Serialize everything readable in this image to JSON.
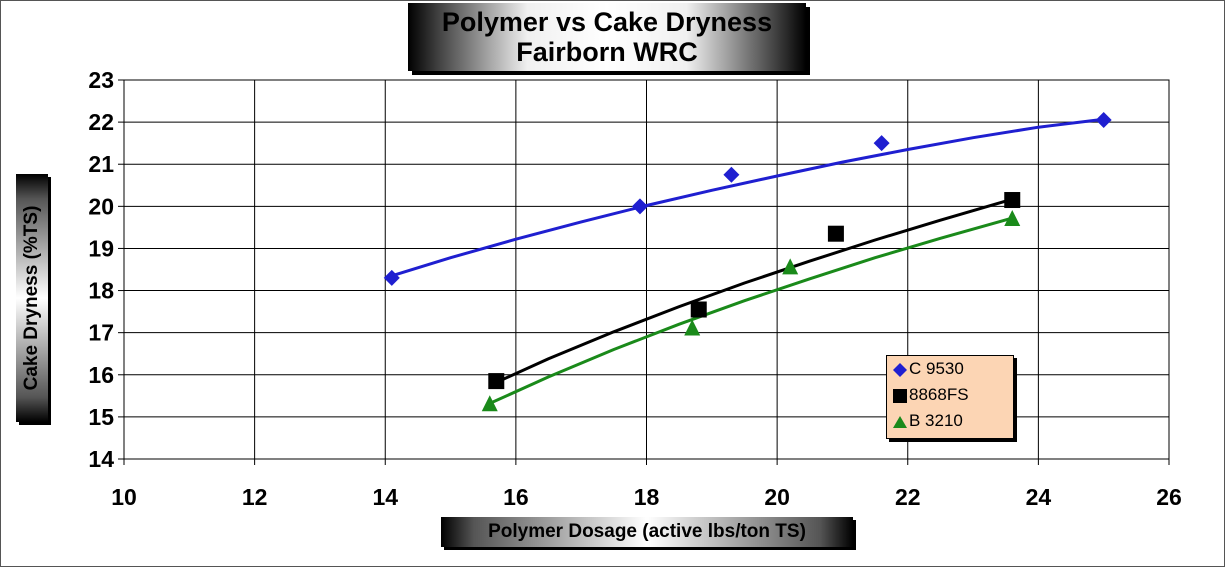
{
  "chart_data": {
    "type": "scatter",
    "title": "Polymer vs Cake Dryness",
    "subtitle": "Fairborn WRC",
    "xlabel": "Polymer Dosage (active lbs/ton TS)",
    "ylabel": "Cake Dryness (%TS)",
    "xlim": [
      10,
      26
    ],
    "ylim": [
      14,
      23
    ],
    "xticks": [
      "10",
      "12",
      "14",
      "16",
      "18",
      "20",
      "22",
      "24",
      "26"
    ],
    "yticks": [
      "14",
      "15",
      "16",
      "17",
      "18",
      "19",
      "20",
      "21",
      "22",
      "23"
    ],
    "grid": true,
    "legend_position": "bottom-right",
    "series": [
      {
        "name": "C 9530",
        "marker": "diamond",
        "color": "#1f1fd0",
        "x": [
          14.1,
          17.9,
          19.3,
          21.6,
          25.0
        ],
        "y": [
          18.3,
          20.0,
          20.75,
          21.5,
          22.05
        ],
        "trend_x": [
          14.1,
          15,
          16,
          17,
          18,
          19,
          20,
          21,
          22,
          23,
          24,
          25.0
        ],
        "trend_y": [
          18.35,
          18.78,
          19.22,
          19.63,
          20.02,
          20.38,
          20.72,
          21.05,
          21.35,
          21.63,
          21.88,
          22.07
        ]
      },
      {
        "name": "8868FS",
        "marker": "square",
        "color": "#000000",
        "x": [
          15.7,
          18.8,
          20.9,
          23.6
        ],
        "y": [
          15.85,
          17.55,
          19.35,
          20.15
        ],
        "trend_x": [
          15.7,
          16.5,
          17.5,
          18.5,
          19.5,
          20.5,
          21.5,
          22.5,
          23.6
        ],
        "trend_y": [
          15.82,
          16.38,
          17.02,
          17.62,
          18.18,
          18.7,
          19.2,
          19.67,
          20.17
        ]
      },
      {
        "name": "B 3210",
        "marker": "triangle",
        "color": "#1a8a1a",
        "x": [
          15.6,
          18.7,
          20.2,
          23.6
        ],
        "y": [
          15.3,
          17.1,
          18.55,
          19.7
        ],
        "trend_x": [
          15.6,
          16.5,
          17.5,
          18.5,
          19.5,
          20.5,
          21.5,
          22.5,
          23.6
        ],
        "trend_y": [
          15.32,
          15.95,
          16.6,
          17.2,
          17.76,
          18.28,
          18.78,
          19.24,
          19.72
        ]
      }
    ]
  }
}
